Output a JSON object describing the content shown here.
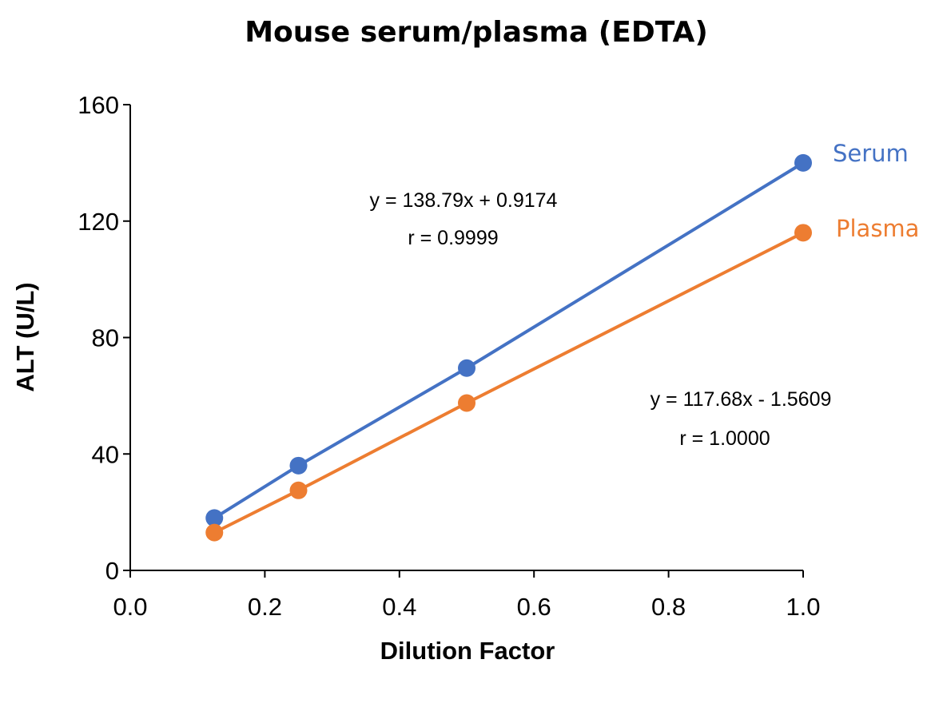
{
  "chart_data": {
    "type": "line",
    "title": "Mouse serum/plasma (EDTA)",
    "xlabel": "Dilution Factor",
    "ylabel": "ALT (U/L)",
    "xlim": [
      0,
      1
    ],
    "ylim": [
      0,
      160
    ],
    "x_ticks": [
      "0.0",
      "0.2",
      "0.4",
      "0.6",
      "0.8",
      "1.0"
    ],
    "y_ticks": [
      "0",
      "40",
      "80",
      "120",
      "160"
    ],
    "grid": false,
    "legend": "series labels at right end of each line",
    "series": [
      {
        "name": "Serum",
        "color": "#4472C4",
        "x": [
          0.125,
          0.25,
          0.5,
          1.0
        ],
        "y": [
          18.0,
          36.0,
          69.5,
          140.0
        ],
        "equation": "y = 138.79x + 0.9174",
        "r": "r = 0.9999"
      },
      {
        "name": "Plasma",
        "color": "#ED7D31",
        "x": [
          0.125,
          0.25,
          0.5,
          1.0
        ],
        "y": [
          13.0,
          27.5,
          57.5,
          116.0
        ],
        "equation": "y = 117.68x - 1.5609",
        "r": "r = 1.0000"
      }
    ]
  }
}
